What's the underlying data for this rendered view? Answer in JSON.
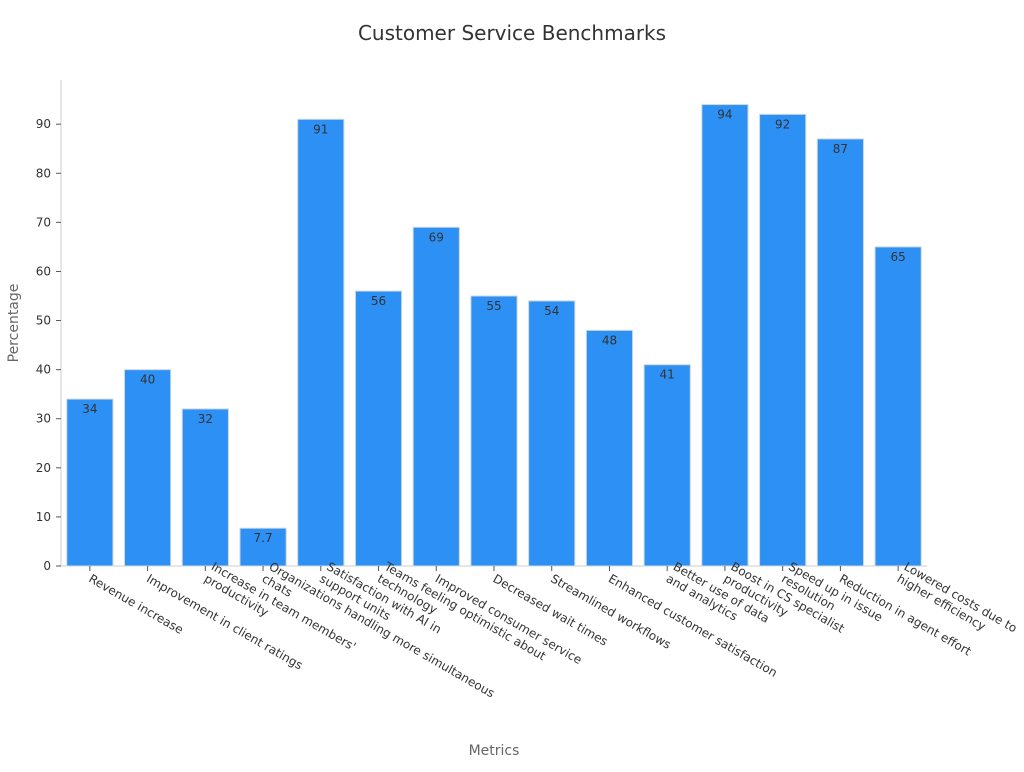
{
  "chart_data": {
    "type": "bar",
    "title": "Customer Service Benchmarks",
    "xlabel": "Metrics",
    "ylabel": "Percentage",
    "ylim": [
      0,
      99
    ],
    "yticks": [
      0,
      10,
      20,
      30,
      40,
      50,
      60,
      70,
      80,
      90
    ],
    "grid": false,
    "legend": "none",
    "bar_color": "#2d90f5",
    "bar_edge_color": "#cfd8dc",
    "categories": [
      [
        "Revenue increase"
      ],
      [
        "Improvement in client ratings"
      ],
      [
        "Increase in team members'",
        "productivity"
      ],
      [
        "Organizations handling more simultaneous",
        "chats"
      ],
      [
        "Satisfaction with AI in",
        "support units"
      ],
      [
        "Teams feeling optimistic about",
        "technology"
      ],
      [
        "Improved consumer service"
      ],
      [
        "Decreased wait times"
      ],
      [
        "Streamlined workflows"
      ],
      [
        "Enhanced customer satisfaction"
      ],
      [
        "Better use of data",
        "and analytics"
      ],
      [
        "Boost in CS specialist",
        "productivity"
      ],
      [
        "Speed up in issue",
        "resolution"
      ],
      [
        "Reduction in agent effort"
      ],
      [
        "Lowered costs due to",
        "higher efficiency"
      ]
    ],
    "values": [
      34,
      40,
      32,
      7.7,
      91,
      56,
      69,
      55,
      54,
      48,
      41,
      94,
      92,
      87,
      65
    ],
    "value_labels": [
      "34",
      "40",
      "32",
      "7.7",
      "91",
      "56",
      "69",
      "55",
      "54",
      "48",
      "41",
      "94",
      "92",
      "87",
      "65"
    ]
  }
}
